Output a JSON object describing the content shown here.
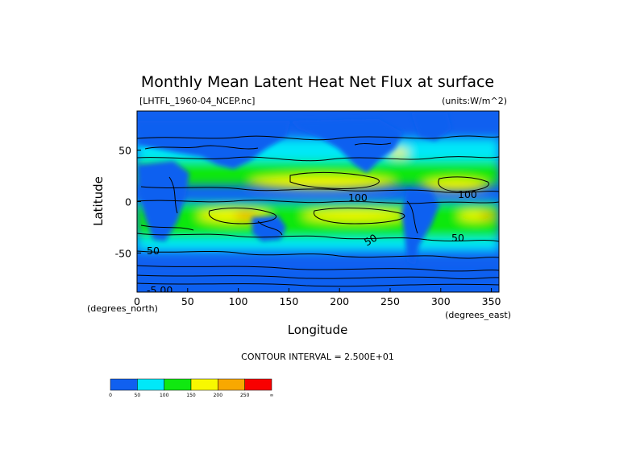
{
  "chart_data": {
    "type": "heatmap",
    "title": "Monthly Mean Latent Heat Net Flux at surface",
    "subtitle_left": "[LHTFL_1960-04_NCEP.nc]",
    "subtitle_right": "(units:W/m^2)",
    "xlabel": "Longitude",
    "ylabel": "Latitude",
    "x_unit_label": "(degrees_east)",
    "y_unit_label": "(degrees_north)",
    "xlim": [
      0,
      357.5
    ],
    "ylim": [
      -88,
      88
    ],
    "x_ticks": [
      0,
      50,
      100,
      150,
      200,
      250,
      300,
      350
    ],
    "y_ticks": [
      -50,
      0,
      50
    ],
    "contour_interval_text": "CONTOUR INTERVAL = 2.500E+01",
    "contour_labels": [
      "100",
      "100",
      "50",
      "50",
      "50",
      "-5.00"
    ],
    "colorbar": {
      "levels": [
        "0",
        "50",
        "100",
        "150",
        "200",
        "250",
        "∞"
      ],
      "colors": [
        "#1060f0",
        "#00e8f8",
        "#10e810",
        "#f8f800",
        "#f8a800",
        "#f80000"
      ]
    }
  },
  "colors": {
    "land": "#1060f0",
    "contour": "#000000"
  }
}
